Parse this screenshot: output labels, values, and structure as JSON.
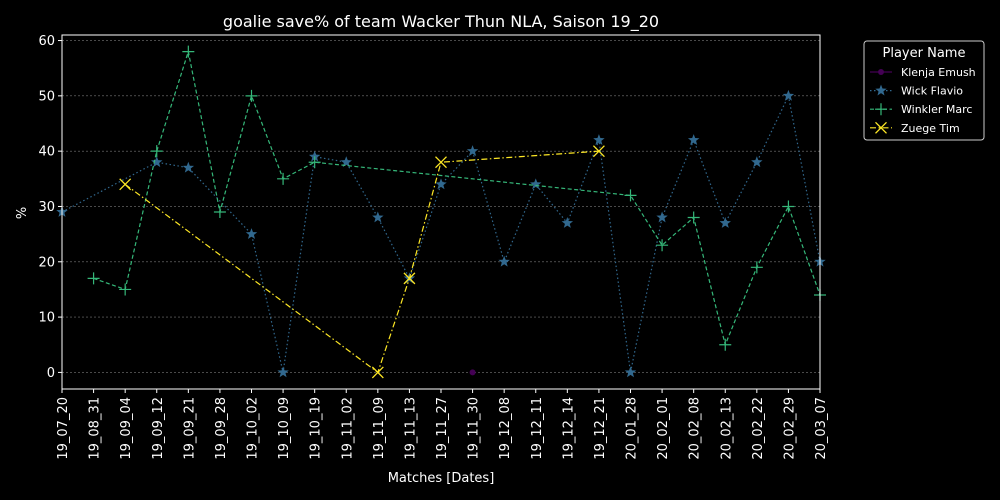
{
  "chart_data": {
    "type": "line",
    "title": "goalie save% of team Wacker Thun NLA, Saison 19_20",
    "xlabel": "Matches [Dates]",
    "ylabel": "%",
    "ylim": [
      -3,
      61
    ],
    "yticks": [
      0,
      10,
      20,
      30,
      40,
      50,
      60
    ],
    "grid": true,
    "legend_title": "Player Name",
    "legend_position": "outside-top-right",
    "categories": [
      "19_07_20",
      "19_08_31",
      "19_09_04",
      "19_09_12",
      "19_09_21",
      "19_09_28",
      "19_10_02",
      "19_10_09",
      "19_10_19",
      "19_11_02",
      "19_11_09",
      "19_11_13",
      "19_11_27",
      "19_11_30",
      "19_12_08",
      "19_12_11",
      "19_12_14",
      "19_12_21",
      "20_01_28",
      "20_02_01",
      "20_02_08",
      "20_02_13",
      "20_02_22",
      "20_02_29",
      "20_03_07"
    ],
    "series": [
      {
        "name": "Klenja Emush",
        "color": "#440154",
        "marker": "circle",
        "dash": "solid",
        "values": [
          null,
          null,
          null,
          null,
          null,
          null,
          null,
          null,
          null,
          null,
          null,
          null,
          null,
          0,
          null,
          null,
          null,
          null,
          null,
          null,
          null,
          null,
          null,
          null,
          null
        ]
      },
      {
        "name": "Wick Flavio",
        "color": "#31688e",
        "marker": "star",
        "dash": "dotted",
        "values": [
          29,
          null,
          null,
          38,
          37,
          null,
          25,
          0,
          39,
          38,
          28,
          17,
          34,
          40,
          20,
          34,
          27,
          42,
          0,
          28,
          42,
          27,
          38,
          50,
          20
        ]
      },
      {
        "name": "Winkler Marc",
        "color": "#35b779",
        "marker": "plus",
        "dash": "dashed",
        "values": [
          null,
          17,
          15,
          40,
          58,
          29,
          50,
          35,
          38,
          null,
          null,
          null,
          null,
          null,
          null,
          null,
          null,
          null,
          32,
          23,
          28,
          5,
          19,
          30,
          14
        ]
      },
      {
        "name": "Zuege Tim",
        "color": "#fde725",
        "marker": "x",
        "dash": "dashdot",
        "values": [
          null,
          null,
          34,
          null,
          null,
          null,
          null,
          null,
          null,
          null,
          0,
          17,
          38,
          null,
          null,
          null,
          null,
          40,
          null,
          null,
          null,
          null,
          null,
          null,
          null
        ]
      }
    ]
  }
}
